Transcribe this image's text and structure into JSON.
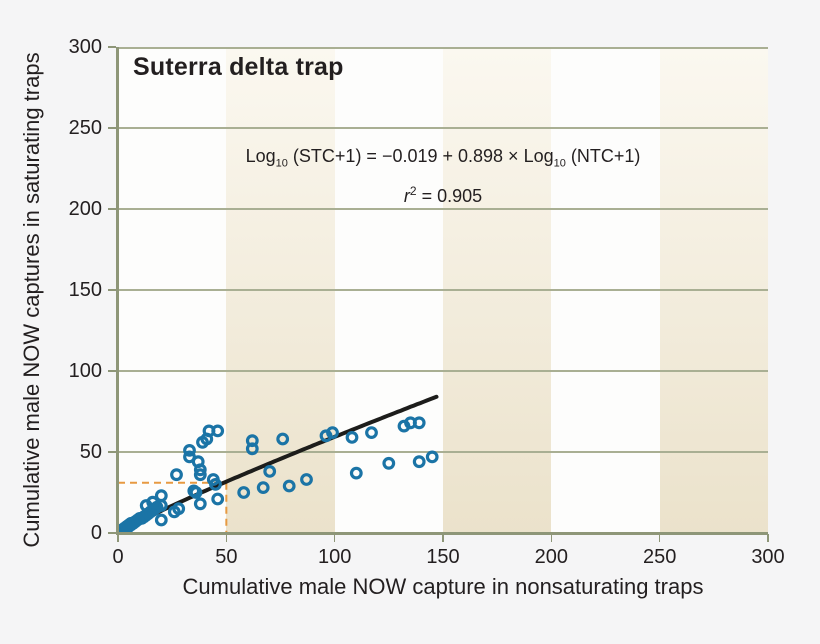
{
  "colors": {
    "background": "#f5f5f6",
    "plot_white": "#fdfdfc",
    "band_beige_top": "#fbf8f0",
    "band_beige_bottom": "#ebe2cb",
    "gridline": "#a9af93",
    "axis": "#8e9678",
    "point": "#1b74a6",
    "regression_line": "#1d1d1b",
    "guide": "#e79a41",
    "text": "#231f20"
  },
  "equation": {
    "func1": "Log",
    "sub1": "10",
    "mid": " (STC+1) = −0.019 + 0.898 × Log",
    "sub2": "10",
    "tail": " (NTC+1)",
    "r_var": "r",
    "r_sup": "2",
    "r_tail": " = 0.905"
  },
  "chart_data": {
    "type": "scatter",
    "title": "Suterra delta trap",
    "xlabel": "Cumulative male NOW capture in nonsaturating traps",
    "ylabel": "Cumulative male NOW captures in saturating traps",
    "xlim": [
      0,
      300
    ],
    "ylim": [
      0,
      300
    ],
    "x_ticks": [
      0,
      50,
      100,
      150,
      200,
      250,
      300
    ],
    "y_ticks": [
      0,
      50,
      100,
      150,
      200,
      250,
      300
    ],
    "grid": "horizontal-only",
    "legend": "none",
    "background_bands": {
      "interval": 50,
      "alternating": true,
      "count": 6
    },
    "points": [
      [
        0,
        0
      ],
      [
        1,
        0
      ],
      [
        1,
        1
      ],
      [
        2,
        1
      ],
      [
        2,
        2
      ],
      [
        3,
        2
      ],
      [
        3,
        3
      ],
      [
        4,
        3
      ],
      [
        4,
        4
      ],
      [
        5,
        4
      ],
      [
        5,
        5
      ],
      [
        6,
        5
      ],
      [
        6,
        6
      ],
      [
        7,
        6
      ],
      [
        8,
        7
      ],
      [
        9,
        8
      ],
      [
        10,
        9
      ],
      [
        11,
        9
      ],
      [
        12,
        10
      ],
      [
        13,
        11
      ],
      [
        14,
        12
      ],
      [
        15,
        13
      ],
      [
        16,
        14
      ],
      [
        17,
        15
      ],
      [
        18,
        16
      ],
      [
        20,
        17
      ],
      [
        13,
        17
      ],
      [
        16,
        19
      ],
      [
        20,
        23
      ],
      [
        20,
        8
      ],
      [
        26,
        13
      ],
      [
        28,
        15
      ],
      [
        27,
        36
      ],
      [
        33,
        51
      ],
      [
        33,
        47
      ],
      [
        37,
        44
      ],
      [
        39,
        56
      ],
      [
        41,
        58
      ],
      [
        38,
        39
      ],
      [
        38,
        36
      ],
      [
        35,
        26
      ],
      [
        36,
        25
      ],
      [
        42,
        63
      ],
      [
        46,
        63
      ],
      [
        44,
        33
      ],
      [
        45,
        30
      ],
      [
        46,
        21
      ],
      [
        38,
        18
      ],
      [
        58,
        25
      ],
      [
        62,
        57
      ],
      [
        62,
        52
      ],
      [
        67,
        28
      ],
      [
        70,
        38
      ],
      [
        76,
        58
      ],
      [
        79,
        29
      ],
      [
        87,
        33
      ],
      [
        96,
        60
      ],
      [
        99,
        62
      ],
      [
        108,
        59
      ],
      [
        117,
        62
      ],
      [
        110,
        37
      ],
      [
        125,
        43
      ],
      [
        132,
        66
      ],
      [
        135,
        68
      ],
      [
        139,
        68
      ],
      [
        139,
        44
      ],
      [
        145,
        47
      ]
    ],
    "regression": {
      "label": "Log10 (STC+1) = −0.019 + 0.898 × Log10 (NTC+1)",
      "r_squared": 0.905,
      "intercept": -0.019,
      "slope": 0.898,
      "x_start": 0,
      "x_end": 147
    },
    "guide_lines": {
      "x": 50,
      "y": 31,
      "style": "dashed"
    }
  }
}
